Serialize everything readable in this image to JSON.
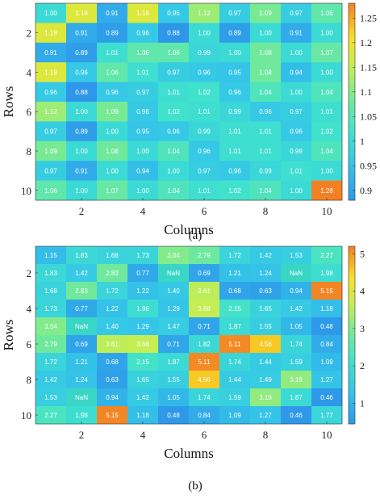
{
  "chart_data": [
    {
      "type": "heatmap",
      "caption": "(a)",
      "xlabel": "Columns",
      "ylabel": "Rows",
      "x_ticks": [
        2,
        4,
        6,
        8,
        10
      ],
      "y_ticks": [
        2,
        4,
        6,
        8,
        10
      ],
      "colorbar_range": [
        0.88,
        1.28
      ],
      "colorbar_ticks": [
        "0.9",
        "0.95",
        "1",
        "1.05",
        "1.1",
        "1.15",
        "1.2",
        "1.25"
      ],
      "labels": [
        [
          "1.00",
          "1.18",
          "0.91",
          "1.18",
          "0.96",
          "1.12",
          "0.97",
          "1.09",
          "0.97",
          "1.06"
        ],
        [
          "1.18",
          "0.91",
          "0.89",
          "0.96",
          "0.88",
          "1.00",
          "0.89",
          "1.00",
          "0.91",
          "1.00"
        ],
        [
          "0.91",
          "0.89",
          "1.01",
          "1.06",
          "1.06",
          "0.99",
          "1.00",
          "1.08",
          "1.00",
          "1.07"
        ],
        [
          "1.18",
          "0.96",
          "1.06",
          "1.01",
          "0.97",
          "0.96",
          "0.95",
          "1.08",
          "0.94",
          "1.00"
        ],
        [
          "0.96",
          "0.88",
          "0.96",
          "0.97",
          "1.01",
          "1.02",
          "0.96",
          "1.04",
          "1.00",
          "1.04"
        ],
        [
          "1.12",
          "1.00",
          "1.09",
          "0.96",
          "1.02",
          "1.01",
          "0.99",
          "0.96",
          "0.97",
          "1.01"
        ],
        [
          "0.97",
          "0.89",
          "1.00",
          "0.95",
          "0.96",
          "0.99",
          "1.01",
          "1.01",
          "0.96",
          "1.02"
        ],
        [
          "1.09",
          "1.00",
          "1.08",
          "1.00",
          "1.04",
          "0.96",
          "1.01",
          "1.01",
          "0.99",
          "1.04"
        ],
        [
          "0.97",
          "0.91",
          "1.00",
          "0.94",
          "1.00",
          "0.97",
          "0.96",
          "0.99",
          "1.01",
          "1.00"
        ],
        [
          "1.06",
          "1.00",
          "1.07",
          "1.00",
          "1.04",
          "1.01",
          "1.02",
          "1.04",
          "1.00",
          "1.28"
        ]
      ]
    },
    {
      "type": "heatmap",
      "caption": "(b)",
      "xlabel": "Columns",
      "ylabel": "Rows",
      "x_ticks": [
        2,
        4,
        6,
        8,
        10
      ],
      "y_ticks": [
        2,
        4,
        6,
        8,
        10
      ],
      "colorbar_range": [
        0.45,
        5.2
      ],
      "colorbar_ticks": [
        "1",
        "2",
        "3",
        "4",
        "5"
      ],
      "nan_color": "#3ad6c5",
      "labels": [
        [
          "1.15",
          "1.83",
          "1.68",
          "1.73",
          "3.04",
          "2.79",
          "1.72",
          "1.42",
          "1.53",
          "2.27"
        ],
        [
          "1.83",
          "1.42",
          "2.83",
          "0.77",
          "NaN",
          "0.69",
          "1.21",
          "1.24",
          "NaN",
          "1.98"
        ],
        [
          "1.68",
          "2.83",
          "1.72",
          "1.22",
          "1.40",
          "3.61",
          "0.68",
          "0.63",
          "0.94",
          "5.15"
        ],
        [
          "1.73",
          "0.77",
          "1.22",
          "1.96",
          "1.29",
          "3.68",
          "2.15",
          "1.65",
          "1.42",
          "1.18"
        ],
        [
          "3.04",
          "NaN",
          "1.40",
          "1.29",
          "1.47",
          "0.71",
          "1.87",
          "1.55",
          "1.05",
          "0.48"
        ],
        [
          "2.79",
          "0.69",
          "3.61",
          "3.68",
          "0.71",
          "1.82",
          "5.11",
          "4.56",
          "1.74",
          "0.84"
        ],
        [
          "1.72",
          "1.21",
          "0.68",
          "2.15",
          "1.87",
          "5.11",
          "1.74",
          "1.44",
          "1.59",
          "1.09"
        ],
        [
          "1.42",
          "1.24",
          "0.63",
          "1.65",
          "1.55",
          "4.56",
          "1.44",
          "1.49",
          "3.19",
          "1.27"
        ],
        [
          "1.53",
          "NaN",
          "0.94",
          "1.42",
          "1.05",
          "1.74",
          "1.59",
          "3.19",
          "1.87",
          "0.46"
        ],
        [
          "2.27",
          "1.98",
          "5.15",
          "1.18",
          "0.48",
          "0.84",
          "1.09",
          "1.27",
          "0.46",
          "1.77"
        ]
      ]
    }
  ]
}
